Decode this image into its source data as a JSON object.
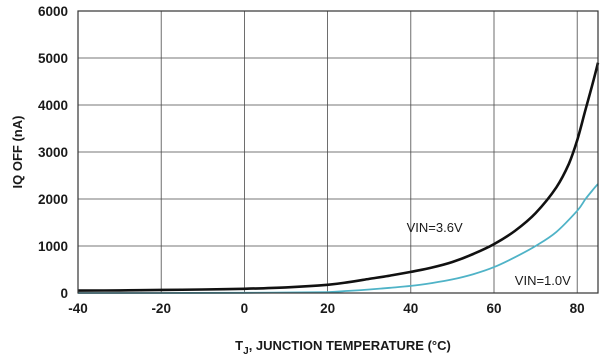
{
  "chart_data": {
    "type": "line",
    "title": "",
    "xlabel_main": "T",
    "xlabel_sub": "J",
    "xlabel_rest": ", JUNCTION TEMPERATURE (°C)",
    "ylabel": "IQ OFF (nA)",
    "xlim": [
      -40,
      85
    ],
    "ylim": [
      0,
      6000
    ],
    "xticks": [
      -40,
      -20,
      0,
      20,
      40,
      60,
      80
    ],
    "yticks": [
      0,
      1000,
      2000,
      3000,
      4000,
      5000,
      6000
    ],
    "grid": true,
    "series": [
      {
        "name": "VIN=3.6V",
        "color": "#111111",
        "x": [
          -40,
          -30,
          -20,
          -10,
          0,
          10,
          20,
          25,
          30,
          35,
          40,
          45,
          50,
          55,
          60,
          65,
          70,
          75,
          78,
          80,
          82,
          84,
          85
        ],
        "y": [
          50,
          55,
          65,
          75,
          90,
          120,
          175,
          230,
          300,
          370,
          450,
          540,
          660,
          830,
          1040,
          1320,
          1700,
          2250,
          2750,
          3250,
          3900,
          4550,
          4900
        ]
      },
      {
        "name": "VIN=1.0V",
        "color": "#4fb3c7",
        "x": [
          -40,
          -20,
          0,
          10,
          20,
          25,
          30,
          35,
          40,
          45,
          50,
          55,
          60,
          65,
          70,
          75,
          80,
          82,
          84,
          85
        ],
        "y": [
          0,
          0,
          5,
          10,
          20,
          45,
          75,
          110,
          150,
          210,
          290,
          400,
          550,
          760,
          1000,
          1300,
          1750,
          2000,
          2220,
          2320
        ]
      }
    ]
  }
}
